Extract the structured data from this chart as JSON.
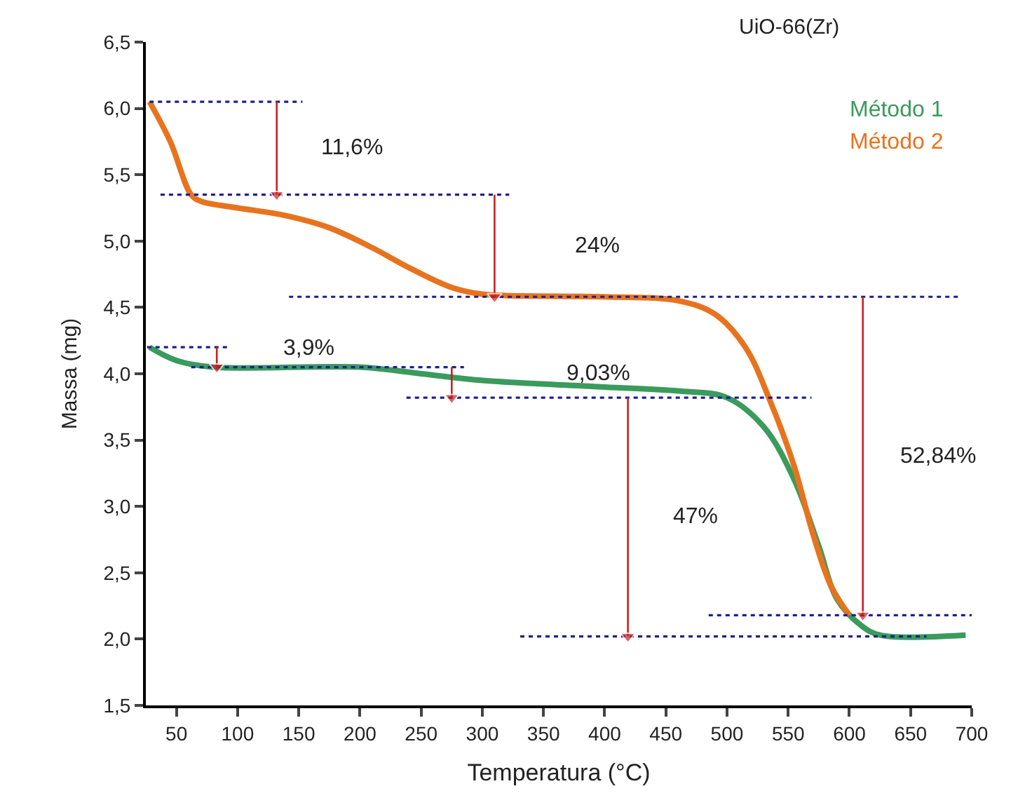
{
  "chart_data": {
    "type": "line",
    "title": "UiO-66(Zr)",
    "xlabel": "Temperatura (°C)",
    "ylabel": "Massa (mg)",
    "xlim": [
      25,
      700
    ],
    "xticks": [
      50,
      100,
      150,
      200,
      250,
      300,
      350,
      400,
      450,
      500,
      550,
      600,
      650,
      700
    ],
    "ylim": [
      1.5,
      6.5
    ],
    "yticks": [
      {
        "value": 1.5,
        "label": "1,5"
      },
      {
        "value": 2.0,
        "label": "2,0"
      },
      {
        "value": 2.5,
        "label": "2,5"
      },
      {
        "value": 3.0,
        "label": "3,0"
      },
      {
        "value": 3.5,
        "label": "3,5"
      },
      {
        "value": 4.0,
        "label": "4,0"
      },
      {
        "value": 4.5,
        "label": "4,5"
      },
      {
        "value": 5.0,
        "label": "5,0"
      },
      {
        "value": 5.5,
        "label": "5,5"
      },
      {
        "value": 6.0,
        "label": "6,0"
      },
      {
        "value": 6.5,
        "label": "6,5"
      }
    ],
    "legend": "top right",
    "marker": "none",
    "line_style": "solid",
    "series": [
      {
        "name": "Método 1",
        "color": "#3a9b5c",
        "x": [
          28,
          50,
          80,
          200,
          250,
          300,
          400,
          460,
          500,
          530,
          555,
          575,
          590,
          610,
          625,
          695
        ],
        "values": [
          4.2,
          4.1,
          4.05,
          4.05,
          4.0,
          3.95,
          3.9,
          3.87,
          3.82,
          3.6,
          3.2,
          2.7,
          2.3,
          2.1,
          2.03,
          2.03
        ]
      },
      {
        "name": "Método 2",
        "color": "#e8731e",
        "x": [
          28,
          45,
          62,
          70,
          100,
          135,
          175,
          210,
          240,
          275,
          300,
          400,
          460,
          490,
          515,
          535,
          555,
          570,
          585,
          600
        ],
        "values": [
          6.05,
          5.75,
          5.35,
          5.3,
          5.25,
          5.2,
          5.1,
          4.95,
          4.8,
          4.65,
          4.6,
          4.58,
          4.55,
          4.45,
          4.2,
          3.8,
          3.3,
          2.8,
          2.4,
          2.18
        ]
      },
      {
        "color": "#1f1f8f",
        "line_style": "dotted",
        "x": [
          28,
          153
        ],
        "values": [
          6.05,
          6.05
        ]
      },
      {
        "color": "#1f1f8f",
        "line_style": "dotted",
        "x": [
          37,
          322
        ],
        "values": [
          5.35,
          5.35
        ]
      },
      {
        "color": "#1f1f8f",
        "line_style": "dotted",
        "x": [
          142,
          690
        ],
        "values": [
          4.58,
          4.58
        ]
      },
      {
        "color": "#1f1f8f",
        "line_style": "dotted",
        "x": [
          26,
          94
        ],
        "values": [
          4.2,
          4.2
        ]
      },
      {
        "color": "#1f1f8f",
        "line_style": "dotted",
        "x": [
          62,
          285
        ],
        "values": [
          4.05,
          4.05
        ]
      },
      {
        "color": "#1f1f8f",
        "line_style": "dotted",
        "x": [
          238,
          569
        ],
        "values": [
          3.82,
          3.82
        ]
      },
      {
        "color": "#1f1f8f",
        "line_style": "dotted",
        "x": [
          331,
          663
        ],
        "values": [
          2.02,
          2.02
        ]
      },
      {
        "color": "#1f1f8f",
        "line_style": "dotted",
        "x": [
          485,
          700
        ],
        "values": [
          2.18,
          2.18
        ]
      },
      {
        "color": "#cc1f1f",
        "marker": "triangle",
        "x": [
          132,
          132
        ],
        "values": [
          6.05,
          5.35
        ]
      },
      {
        "color": "#cc1f1f",
        "marker": "triangle",
        "x": [
          310,
          310
        ],
        "values": [
          5.35,
          4.58
        ]
      },
      {
        "color": "#cc1f1f",
        "marker": "triangle",
        "x": [
          83,
          83
        ],
        "values": [
          4.2,
          4.05
        ]
      },
      {
        "color": "#cc1f1f",
        "marker": "triangle",
        "x": [
          275,
          275
        ],
        "values": [
          4.05,
          3.82
        ]
      },
      {
        "color": "#cc1f1f",
        "marker": "triangle",
        "x": [
          419,
          419
        ],
        "values": [
          3.82,
          2.02
        ]
      },
      {
        "color": "#cc1f1f",
        "marker": "triangle",
        "x": [
          611,
          611
        ],
        "values": [
          4.58,
          2.18
        ]
      }
    ],
    "annotations": [
      "11,6%",
      "24%",
      "3,9%",
      "9,03%",
      "47%",
      "52,84%"
    ]
  }
}
